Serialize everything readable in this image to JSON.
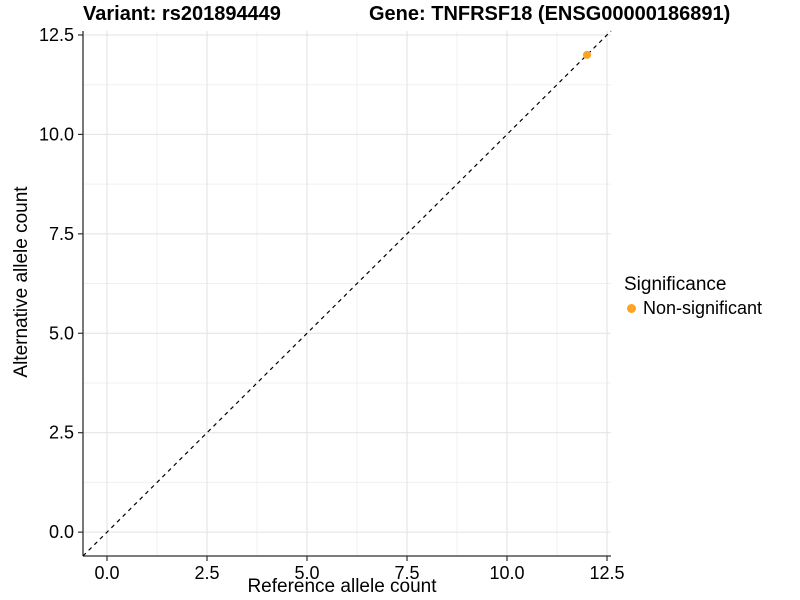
{
  "header": {
    "title_left": "Variant: rs201894449",
    "title_right": "Gene: TNFRSF18 (ENSG00000186891)"
  },
  "chart_data": {
    "type": "scatter",
    "title_left": "Variant: rs201894449",
    "title_right": "Gene: TNFRSF18 (ENSG00000186891)",
    "xlabel": "Reference allele count",
    "ylabel": "Alternative allele count",
    "xlim": [
      -0.6,
      12.6
    ],
    "ylim": [
      -0.6,
      12.6
    ],
    "ticks": {
      "values": [
        0,
        2.5,
        5,
        7.5,
        10,
        12.5
      ],
      "labels": [
        "0.0",
        "2.5",
        "5.0",
        "7.5",
        "10.0",
        "12.5"
      ]
    },
    "minor_tick_values": [
      1.25,
      3.75,
      6.25,
      8.75,
      11.25
    ],
    "grid": true,
    "identity_line": {
      "slope": 1,
      "intercept": 0,
      "style": "dashed",
      "color": "#000000"
    },
    "series": [
      {
        "name": "Non-significant",
        "color": "#FFA321",
        "points": [
          {
            "x": 12,
            "y": 12
          }
        ]
      }
    ],
    "legend": {
      "title": "Significance",
      "position": "right",
      "items": [
        {
          "label": "Non-significant",
          "color": "#FFA321"
        }
      ]
    }
  },
  "colors": {
    "background": "#FFFFFF",
    "axis_line": "#2F2F2F",
    "grid_major": "#E2E2E2",
    "grid_minor": "#F0F0F0",
    "text": "#000000",
    "point": "#FFA321"
  }
}
